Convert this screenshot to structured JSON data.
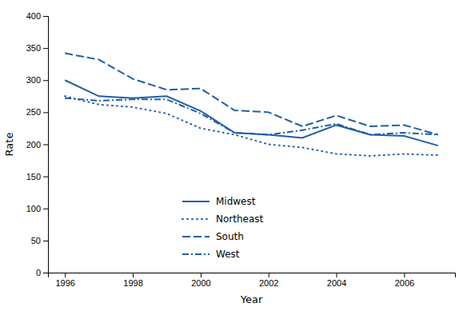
{
  "chart_data": {
    "type": "line",
    "xlabel": "Year",
    "ylabel": "Rate",
    "x": [
      1996,
      1997,
      1998,
      1999,
      2000,
      2001,
      2002,
      2003,
      2004,
      2005,
      2006,
      2007
    ],
    "series": [
      {
        "name": "Midwest",
        "color": "#1f5fa6",
        "line_style": "solid",
        "values": [
          300,
          275,
          272,
          275,
          252,
          218,
          215,
          210,
          230,
          215,
          213,
          198
        ]
      },
      {
        "name": "Northeast",
        "color": "#1f5fa6",
        "line_style": "dotted",
        "values": [
          275,
          262,
          258,
          248,
          225,
          215,
          200,
          195,
          185,
          182,
          185,
          183
        ]
      },
      {
        "name": "South",
        "color": "#1f5fa6",
        "line_style": "dashed",
        "values": [
          342,
          332,
          302,
          285,
          287,
          253,
          250,
          228,
          245,
          228,
          230,
          215
        ]
      },
      {
        "name": "West",
        "color": "#1f5fa6",
        "line_style": "dashdot",
        "values": [
          272,
          268,
          270,
          270,
          248,
          218,
          215,
          222,
          232,
          215,
          218,
          215
        ]
      }
    ],
    "xlim": [
      1995.5,
      2007.5
    ],
    "xticks": [
      1996,
      1998,
      2000,
      2002,
      2004,
      2006
    ],
    "ylim": [
      0,
      400
    ],
    "yticks": [
      0,
      50,
      100,
      150,
      200,
      250,
      300,
      350,
      400
    ],
    "grid": false,
    "legend": "lower left"
  }
}
